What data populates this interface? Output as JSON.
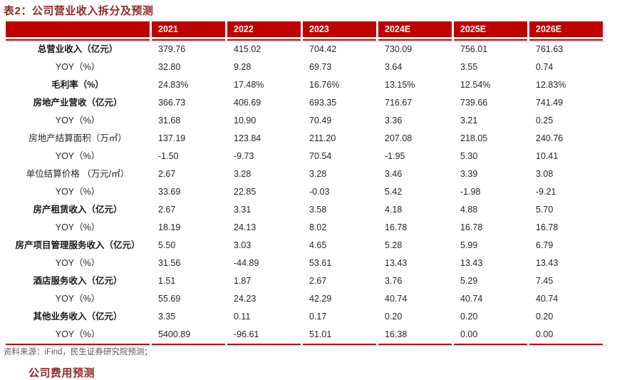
{
  "caption": "表2：公司营业收入拆分及预测",
  "table": {
    "year_columns": [
      "2021",
      "2022",
      "2023",
      "2024E",
      "2025E",
      "2026E"
    ],
    "rows": [
      {
        "label": "总营业收入（亿元）",
        "emphasis": true,
        "values": [
          "379.76",
          "415.02",
          "704.42",
          "730.09",
          "756.01",
          "761.63"
        ]
      },
      {
        "label": "YOY（%）",
        "emphasis": false,
        "values": [
          "32.80",
          "9.28",
          "69.73",
          "3.64",
          "3.55",
          "0.74"
        ]
      },
      {
        "label": "毛利率（%）",
        "emphasis": true,
        "values": [
          "24.83%",
          "17.48%",
          "16.76%",
          "13.15%",
          "12.54%",
          "12.83%"
        ]
      },
      {
        "label": "房地产业营收（亿元）",
        "emphasis": true,
        "values": [
          "366.73",
          "406.69",
          "693.35",
          "716.67",
          "739.66",
          "741.49"
        ]
      },
      {
        "label": "YOY（%）",
        "emphasis": false,
        "values": [
          "31.68",
          "10.90",
          "70.49",
          "3.36",
          "3.21",
          "0.25"
        ]
      },
      {
        "label": "房地产结算面积（万㎡）",
        "emphasis": false,
        "values": [
          "137.19",
          "123.84",
          "211.20",
          "207.08",
          "218.05",
          "240.76"
        ]
      },
      {
        "label": "YOY（%）",
        "emphasis": false,
        "values": [
          "-1.50",
          "-9.73",
          "70.54",
          "-1.95",
          "5.30",
          "10.41"
        ]
      },
      {
        "label": "单位结算价格 （万元/㎡）",
        "emphasis": false,
        "values": [
          "2.67",
          "3.28",
          "3.28",
          "3.46",
          "3.39",
          "3.08"
        ]
      },
      {
        "label": "YOY（%）",
        "emphasis": false,
        "values": [
          "33.69",
          "22.85",
          "-0.03",
          "5.42",
          "-1.98",
          "-9.21"
        ]
      },
      {
        "label": "房产租赁收入（亿元）",
        "emphasis": true,
        "values": [
          "2.67",
          "3.31",
          "3.58",
          "4.18",
          "4.88",
          "5.70"
        ]
      },
      {
        "label": "YOY（%）",
        "emphasis": false,
        "values": [
          "18.19",
          "24.13",
          "8.02",
          "16.78",
          "16.78",
          "16.78"
        ]
      },
      {
        "label": "房产项目管理服务收入（亿元）",
        "emphasis": true,
        "values": [
          "5.50",
          "3.03",
          "4.65",
          "5.28",
          "5.99",
          "6.79"
        ]
      },
      {
        "label": "YOY（%）",
        "emphasis": false,
        "values": [
          "31.56",
          "-44.89",
          "53.61",
          "13.43",
          "13.43",
          "13.43"
        ]
      },
      {
        "label": "酒店服务收入（亿元）",
        "emphasis": true,
        "values": [
          "1.51",
          "1.87",
          "2.67",
          "3.76",
          "5.29",
          "7.45"
        ]
      },
      {
        "label": "YOY（%）",
        "emphasis": false,
        "values": [
          "55.69",
          "24.23",
          "42.29",
          "40.74",
          "40.74",
          "40.74"
        ]
      },
      {
        "label": "其他业务收入（亿元）",
        "emphasis": true,
        "values": [
          "3.35",
          "0.11",
          "0.17",
          "0.20",
          "0.20",
          "0.20"
        ]
      },
      {
        "label": "YOY（%）",
        "emphasis": false,
        "values": [
          "5400.89",
          "-96.61",
          "51.01",
          "16.38",
          "0.00",
          "0.00"
        ]
      }
    ]
  },
  "source_note": "资料来源：iFind，民生证券研究院预测；",
  "next_section_partial": "公司费用预测",
  "colors": {
    "header_red": "#C00000",
    "caption_red": "#8F2A25",
    "alt_row_gray": "#EBEBEB",
    "note_gray": "#595959"
  }
}
